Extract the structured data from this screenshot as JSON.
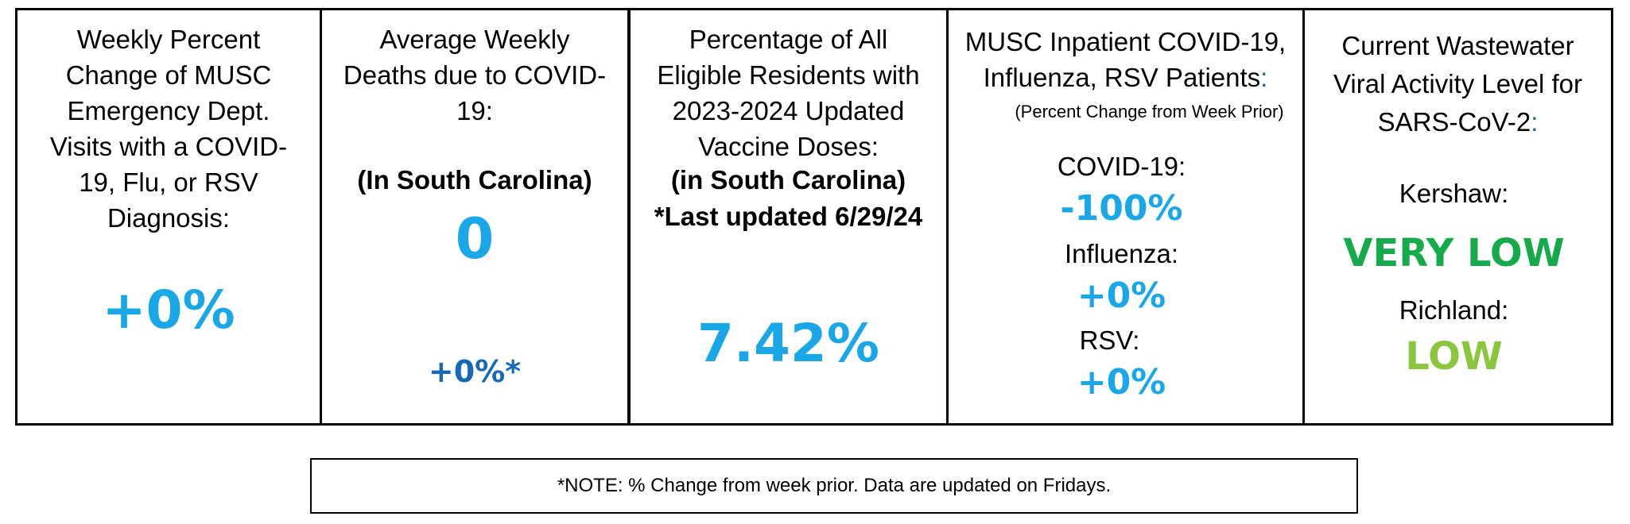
{
  "panel1": {
    "title_lines": [
      "Weekly Percent",
      "Change of MUSC",
      "Emergency Dept.",
      "Visits with a COVID-",
      "19, Flu, or RSV",
      "Diagnosis:"
    ],
    "value": "+0%"
  },
  "panel2": {
    "title_lines": [
      "Average Weekly",
      "Deaths due to COVID-",
      "19:"
    ],
    "region": "(In South Carolina)",
    "value": "0",
    "change": "+0%*"
  },
  "panel3": {
    "title_lines": [
      "Percentage of All",
      "Eligible Residents with",
      "2023-2024 Updated",
      "Vaccine Doses:"
    ],
    "region": "(in South Carolina)",
    "updated": "*Last updated 6/29/24",
    "value": "7.42%"
  },
  "panel4": {
    "title_lines": [
      "MUSC Inpatient COVID-19,",
      "Influenza, RSV Patients"
    ],
    "title_colon": ":",
    "subtitle": "(Percent Change from Week Prior)",
    "covid_label": "COVID-19:",
    "covid_value": "-100%",
    "flu_label": "Influenza:",
    "flu_value": "+0%",
    "rsv_label": "RSV:",
    "rsv_value": "+0%"
  },
  "panel5": {
    "title_lines": [
      "Current Wastewater",
      "Viral Activity Level for",
      "SARS-CoV-2"
    ],
    "title_colon": ":",
    "county1_label": "Kershaw:",
    "county1_level": "VERY LOW",
    "county2_label": "Richland:",
    "county2_level": "LOW"
  },
  "note": "*NOTE: % Change from week prior. Data are updated on Fridays.",
  "colors": {
    "cyan": "#1aa7e8",
    "dark_blue": "#1569b8",
    "green": "#15aa4b",
    "light_green": "#8cc63f",
    "colon_blue": "#1f5fa0"
  }
}
